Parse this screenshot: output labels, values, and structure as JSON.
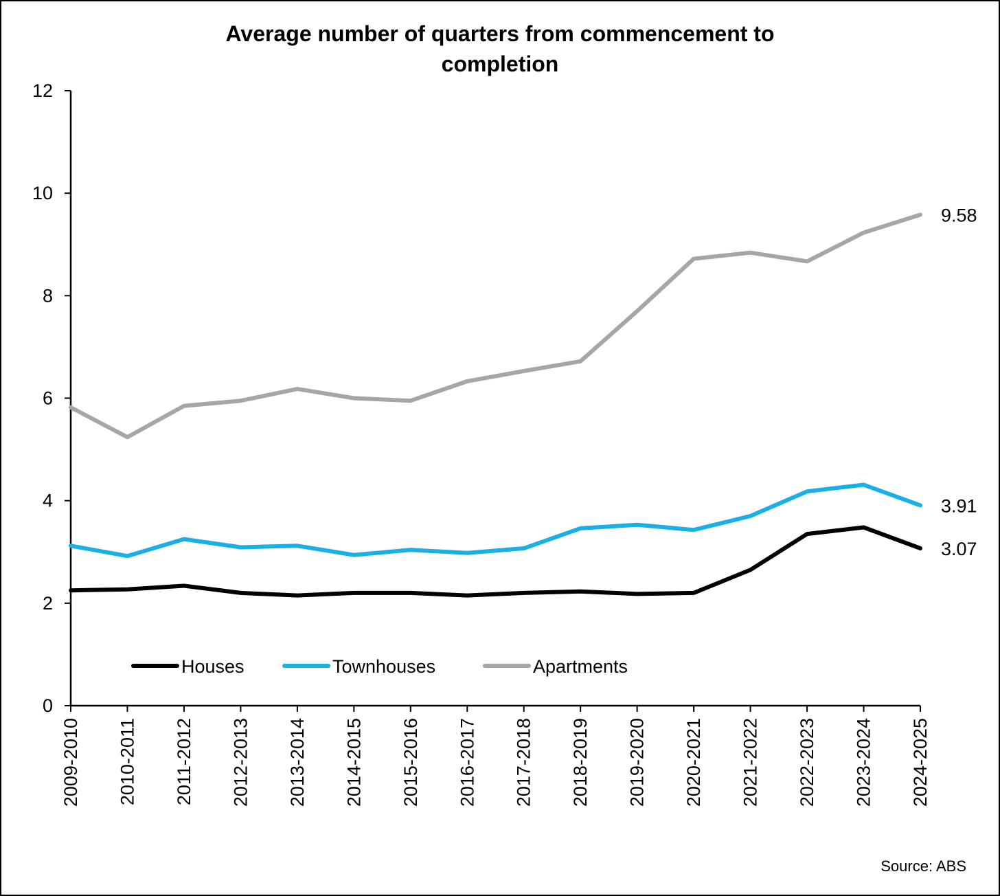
{
  "chart_data": {
    "type": "line",
    "title": "Average number of quarters from commencement to completion",
    "title_lines": [
      "Average number of quarters from commencement to",
      "completion"
    ],
    "xlabel": "",
    "ylabel": "",
    "ylim": [
      0,
      12
    ],
    "y_ticks": [
      "0",
      "2",
      "4",
      "6",
      "8",
      "10",
      "12"
    ],
    "grid": false,
    "legend_position": "bottom-left",
    "categories": [
      "2009-2010",
      "2010-2011",
      "2011-2012",
      "2012-2013",
      "2013-2014",
      "2014-2015",
      "2015-2016",
      "2016-2017",
      "2017-2018",
      "2018-2019",
      "2019-2020",
      "2020-2021",
      "2021-2022",
      "2022-2023",
      "2023-2024",
      "2024-2025"
    ],
    "series": [
      {
        "name": "Houses",
        "color": "#000000",
        "values": [
          2.25,
          2.27,
          2.34,
          2.2,
          2.15,
          2.2,
          2.2,
          2.15,
          2.2,
          2.23,
          2.18,
          2.2,
          2.65,
          3.35,
          3.48,
          3.07
        ],
        "end_label": "3.07"
      },
      {
        "name": "Townhouses",
        "color": "#1ab0e6",
        "values": [
          3.12,
          2.92,
          3.25,
          3.09,
          3.12,
          2.94,
          3.04,
          2.98,
          3.07,
          3.46,
          3.53,
          3.43,
          3.7,
          4.18,
          4.31,
          3.91
        ],
        "end_label": "3.91"
      },
      {
        "name": "Apartments",
        "color": "#a6a6a6",
        "values": [
          5.82,
          5.24,
          5.85,
          5.95,
          6.18,
          6.0,
          5.95,
          6.33,
          6.53,
          6.72,
          7.7,
          8.72,
          8.84,
          8.67,
          9.23,
          9.58
        ],
        "end_label": "9.58"
      }
    ],
    "source": "Source: ABS"
  }
}
